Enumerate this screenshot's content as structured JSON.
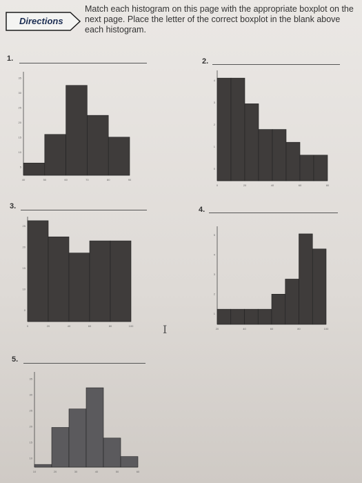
{
  "directions_label": "Directions",
  "instructions": "Match each histogram on this page with the appropriate boxplot on the next page. Place the letter of the correct boxplot in the blank above each histogram.",
  "cursor_glyph": "I",
  "questions": [
    {
      "number": "1.",
      "answer": ""
    },
    {
      "number": "2.",
      "answer": ""
    },
    {
      "number": "3.",
      "answer": ""
    },
    {
      "number": "4.",
      "answer": ""
    },
    {
      "number": "5.",
      "answer": ""
    }
  ],
  "colors": {
    "bar": "#3f3c3b",
    "bar_light": "#5b5a5d",
    "axis": "#444444"
  },
  "chart_data": [
    {
      "type": "bar",
      "x_ticks": [
        "40",
        "50",
        "60",
        "70",
        "80",
        "90"
      ],
      "y_ticks": [
        "5",
        "10",
        "15",
        "20",
        "25",
        "30",
        "35"
      ],
      "values": [
        4.5,
        15,
        33,
        22,
        14
      ],
      "ylim": [
        0,
        38
      ]
    },
    {
      "type": "bar",
      "x_ticks": [
        "0",
        "20",
        "40",
        "60",
        "80"
      ],
      "y_ticks": [
        "0",
        "1",
        "2",
        "3",
        "4"
      ],
      "values": [
        4,
        4,
        3,
        2,
        2,
        1.5,
        1,
        1
      ],
      "ylim": [
        0,
        4.3
      ]
    },
    {
      "type": "bar",
      "x_ticks": [
        "0",
        "20",
        "40",
        "60",
        "80",
        "100"
      ],
      "y_ticks": [
        "0",
        "10",
        "15",
        "20",
        "25"
      ],
      "values": [
        25,
        21,
        17,
        20,
        20
      ],
      "ylim": [
        0,
        26
      ]
    },
    {
      "type": "bar",
      "x_ticks": [
        "20",
        "40",
        "60",
        "80",
        "100"
      ],
      "y_ticks": [
        "1",
        "2",
        "3",
        "4",
        "5"
      ],
      "values": [
        1,
        1,
        1,
        1,
        2,
        3,
        6,
        5
      ],
      "ylim": [
        0,
        6.5
      ]
    },
    {
      "type": "bar",
      "x_ticks": [
        "10",
        "20",
        "30",
        "40",
        "50",
        "60"
      ],
      "y_ticks": [
        "10",
        "15",
        "20",
        "25",
        "30",
        "35"
      ],
      "values": [
        1,
        15,
        22,
        30,
        11,
        4
      ],
      "ylim": [
        0,
        36
      ]
    }
  ]
}
